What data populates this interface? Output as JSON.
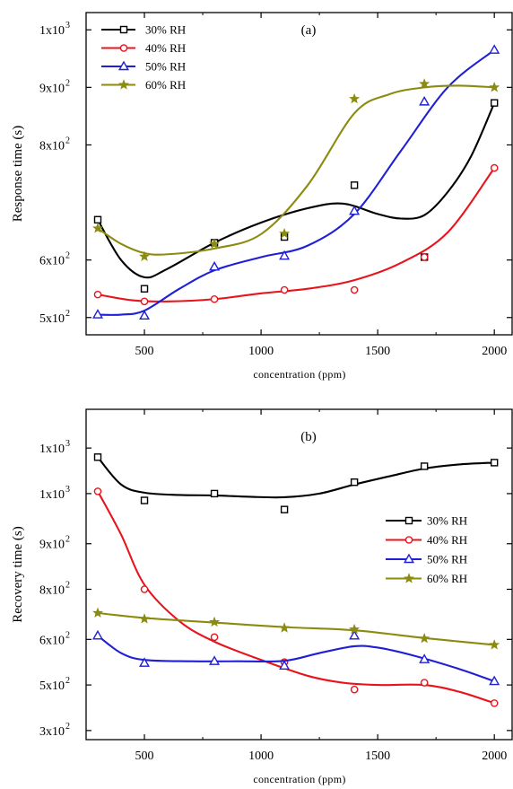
{
  "chart_data": [
    {
      "type": "line",
      "panel_label": "(a)",
      "xlabel": "concentration (ppm)",
      "ylabel": "Response time (s)",
      "xlim": [
        250,
        2080
      ],
      "ylim": [
        470,
        1030
      ],
      "x_ticks": [
        500,
        1000,
        1500,
        2000
      ],
      "y_ticks": [
        {
          "value": 500,
          "label": "5x10",
          "exp": "2"
        },
        {
          "value": 600,
          "label": "6x10",
          "exp": "2"
        },
        {
          "value": 800,
          "label": "8x10",
          "exp": "2"
        },
        {
          "value": 900,
          "label": "9x10",
          "exp": "2"
        },
        {
          "value": 1000,
          "label": "1x10",
          "exp": "3"
        }
      ],
      "legend_position": "top-left",
      "x": [
        300,
        500,
        800,
        1100,
        1400,
        1700,
        2000
      ],
      "series": [
        {
          "name": "30% RH",
          "marker": "square",
          "color": "#000000",
          "values": [
            670,
            550,
            630,
            640,
            730,
            605,
            873
          ],
          "fit": [
            [
              300,
              670
            ],
            [
              400,
              600
            ],
            [
              500,
              570
            ],
            [
              600,
              585
            ],
            [
              800,
              630
            ],
            [
              1000,
              665
            ],
            [
              1200,
              690
            ],
            [
              1350,
              698
            ],
            [
              1500,
              680
            ],
            [
              1600,
              672
            ],
            [
              1700,
              678
            ],
            [
              1800,
              718
            ],
            [
              1900,
              780
            ],
            [
              2000,
              873
            ]
          ]
        },
        {
          "name": "40% RH",
          "marker": "circle",
          "color": "#e8141c",
          "values": [
            540,
            528,
            532,
            548,
            548,
            605,
            760
          ],
          "fit": [
            [
              300,
              540
            ],
            [
              450,
              530
            ],
            [
              600,
              528
            ],
            [
              800,
              532
            ],
            [
              1000,
              542
            ],
            [
              1200,
              550
            ],
            [
              1400,
              565
            ],
            [
              1600,
              595
            ],
            [
              1800,
              648
            ],
            [
              2000,
              760
            ]
          ]
        },
        {
          "name": "50% RH",
          "marker": "triangle",
          "color": "#1f1fd6",
          "values": [
            505,
            503,
            588,
            607,
            685,
            875,
            965
          ],
          "fit": [
            [
              300,
              505
            ],
            [
              400,
              505
            ],
            [
              500,
              512
            ],
            [
              650,
              550
            ],
            [
              800,
              582
            ],
            [
              1000,
              605
            ],
            [
              1200,
              625
            ],
            [
              1400,
              680
            ],
            [
              1600,
              790
            ],
            [
              1800,
              900
            ],
            [
              2000,
              965
            ]
          ]
        },
        {
          "name": "60% RH",
          "marker": "star",
          "color": "#8b8b10",
          "values": [
            655,
            606,
            628,
            646,
            880,
            906,
            900
          ],
          "fit": [
            [
              300,
              655
            ],
            [
              400,
              628
            ],
            [
              500,
              612
            ],
            [
              600,
              610
            ],
            [
              800,
              620
            ],
            [
              1000,
              645
            ],
            [
              1200,
              730
            ],
            [
              1400,
              855
            ],
            [
              1550,
              888
            ],
            [
              1700,
              900
            ],
            [
              1850,
              903
            ],
            [
              2000,
              900
            ]
          ]
        }
      ]
    },
    {
      "type": "line",
      "panel_label": "(b)",
      "xlabel": "concentration (ppm)",
      "ylabel": "Recovery time (s)",
      "xlim": [
        250,
        2080
      ],
      "ylim": [
        340,
        1065
      ],
      "x_ticks": [
        500,
        1000,
        1500,
        2000
      ],
      "y_ticks": [
        {
          "value": 360,
          "label": "3x10",
          "exp": "2"
        },
        {
          "value": 460,
          "label": "5x10",
          "exp": "2"
        },
        {
          "value": 560,
          "label": "6x10",
          "exp": "2"
        },
        {
          "value": 670,
          "label": "8x10",
          "exp": "2"
        },
        {
          "value": 770,
          "label": "9x10",
          "exp": "2"
        },
        {
          "value": 880,
          "label": "1x10",
          "exp": "3"
        },
        {
          "value": 980,
          "label": "1x10",
          "exp": "3"
        }
      ],
      "legend_position": "middle-right",
      "x": [
        300,
        500,
        800,
        1100,
        1400,
        1700,
        2000
      ],
      "series": [
        {
          "name": "30% RH",
          "marker": "square",
          "color": "#000000",
          "values": [
            960,
            865,
            880,
            845,
            905,
            940,
            948
          ],
          "fit": [
            [
              300,
              960
            ],
            [
              400,
              900
            ],
            [
              500,
              882
            ],
            [
              650,
              877
            ],
            [
              800,
              876
            ],
            [
              950,
              873
            ],
            [
              1100,
              872
            ],
            [
              1250,
              880
            ],
            [
              1400,
              900
            ],
            [
              1550,
              918
            ],
            [
              1700,
              935
            ],
            [
              1850,
              944
            ],
            [
              2000,
              948
            ]
          ]
        },
        {
          "name": "40% RH",
          "marker": "circle",
          "color": "#e8141c",
          "values": [
            885,
            670,
            565,
            510,
            450,
            465,
            420
          ],
          "fit": [
            [
              300,
              885
            ],
            [
              400,
              790
            ],
            [
              500,
              680
            ],
            [
              650,
              600
            ],
            [
              800,
              555
            ],
            [
              1000,
              515
            ],
            [
              1200,
              480
            ],
            [
              1350,
              465
            ],
            [
              1500,
              460
            ],
            [
              1700,
              460
            ],
            [
              1850,
              445
            ],
            [
              2000,
              420
            ]
          ]
        },
        {
          "name": "50% RH",
          "marker": "triangle",
          "color": "#1f1fd6",
          "values": [
            568,
            508,
            512,
            502,
            568,
            516,
            468
          ],
          "fit": [
            [
              300,
              568
            ],
            [
              400,
              530
            ],
            [
              500,
              515
            ],
            [
              700,
              512
            ],
            [
              900,
              512
            ],
            [
              1100,
              513
            ],
            [
              1250,
              530
            ],
            [
              1400,
              545
            ],
            [
              1500,
              542
            ],
            [
              1650,
              525
            ],
            [
              1850,
              495
            ],
            [
              2000,
              468
            ]
          ]
        },
        {
          "name": "60% RH",
          "marker": "star",
          "color": "#8b8b10",
          "values": [
            618,
            605,
            598,
            585,
            582,
            562,
            548
          ],
          "fit": [
            [
              300,
              618
            ],
            [
              500,
              607
            ],
            [
              800,
              597
            ],
            [
              1100,
              587
            ],
            [
              1400,
              580
            ],
            [
              1700,
              563
            ],
            [
              2000,
              548
            ]
          ]
        }
      ]
    }
  ]
}
